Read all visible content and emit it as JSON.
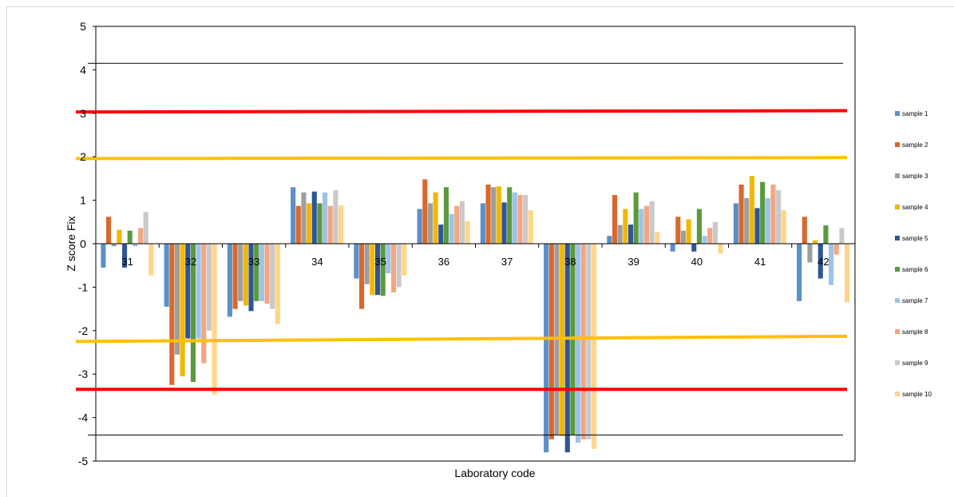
{
  "chart_data": {
    "type": "bar",
    "title": "",
    "xlabel": "Laboratory code",
    "ylabel": "Z score  Fix",
    "ylim": [
      -5,
      5
    ],
    "yticks": [
      5,
      4,
      3,
      2,
      1,
      0,
      -1,
      -2,
      -3,
      -4,
      -5
    ],
    "categories": [
      "31",
      "32",
      "33",
      "34",
      "35",
      "36",
      "37",
      "38",
      "39",
      "40",
      "41",
      "42"
    ],
    "legend_position": "right",
    "grid": false,
    "series": [
      {
        "name": "sample 1",
        "color": "#5b8fc9",
        "values": [
          -0.55,
          -1.45,
          -1.68,
          1.3,
          -0.8,
          0.8,
          0.93,
          -4.8,
          0.18,
          -0.18,
          0.93,
          -1.32
        ]
      },
      {
        "name": "sample 2",
        "color": "#d8692c",
        "values": [
          0.62,
          -3.25,
          -1.5,
          0.87,
          -1.5,
          1.48,
          1.36,
          -4.5,
          1.12,
          0.62,
          1.36,
          0.62
        ]
      },
      {
        "name": "sample 3",
        "color": "#9e9e9e",
        "values": [
          -0.06,
          -2.55,
          -1.32,
          1.18,
          -0.93,
          0.93,
          1.3,
          -4.4,
          0.43,
          0.3,
          1.05,
          -0.43
        ]
      },
      {
        "name": "sample 4",
        "color": "#f2b705",
        "values": [
          0.32,
          -3.05,
          -1.42,
          0.93,
          -1.18,
          1.18,
          1.32,
          -4.42,
          0.8,
          0.56,
          1.56,
          0.08
        ]
      },
      {
        "name": "sample 5",
        "color": "#2f5597",
        "values": [
          -0.55,
          -2.18,
          -1.55,
          1.2,
          -1.18,
          0.44,
          0.95,
          -4.8,
          0.44,
          -0.18,
          0.82,
          -0.8
        ]
      },
      {
        "name": "sample 6",
        "color": "#5a9a3e",
        "values": [
          0.3,
          -3.18,
          -1.32,
          0.93,
          -1.2,
          1.3,
          1.3,
          -4.4,
          1.18,
          0.8,
          1.42,
          0.42
        ]
      },
      {
        "name": "sample 7",
        "color": "#9dc3e6",
        "values": [
          -0.06,
          -2.18,
          -1.32,
          1.18,
          -0.68,
          0.68,
          1.18,
          -4.58,
          0.8,
          0.18,
          1.05,
          -0.95
        ]
      },
      {
        "name": "sample 8",
        "color": "#f4a582",
        "values": [
          0.36,
          -2.75,
          -1.38,
          0.87,
          -1.12,
          0.87,
          1.12,
          -4.5,
          0.87,
          0.36,
          1.36,
          -0.25
        ]
      },
      {
        "name": "sample 9",
        "color": "#c9c9c9",
        "values": [
          0.73,
          -2.0,
          -1.5,
          1.23,
          -1.0,
          0.98,
          1.12,
          -4.5,
          0.98,
          0.5,
          1.23,
          0.36
        ]
      },
      {
        "name": "sample 10",
        "color": "#ffd58a",
        "values": [
          -0.73,
          -3.47,
          -1.85,
          0.88,
          -0.73,
          0.52,
          0.77,
          -4.72,
          0.27,
          -0.23,
          0.77,
          -1.35
        ]
      }
    ],
    "reference_lines": [
      {
        "from": 4.15,
        "to": 4.15,
        "color": "#000000",
        "weight": "thin"
      },
      {
        "from": 3.03,
        "to": 3.06,
        "color": "#ff0000",
        "weight": "thick"
      },
      {
        "from": 1.96,
        "to": 1.98,
        "color": "#ffc000",
        "weight": "thick"
      },
      {
        "from": -2.25,
        "to": -2.13,
        "color": "#ffc000",
        "weight": "thick"
      },
      {
        "from": -3.35,
        "to": -3.35,
        "color": "#ff0000",
        "weight": "thick"
      },
      {
        "from": -4.4,
        "to": -4.4,
        "color": "#000000",
        "weight": "thin"
      }
    ]
  }
}
